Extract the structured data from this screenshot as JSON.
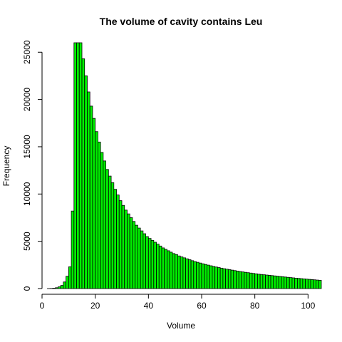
{
  "chart_data": {
    "type": "bar",
    "title": "The volume of cavity contains Leu",
    "xlabel": "Volume",
    "ylabel": "Frequency",
    "bar_color": "#00ee00",
    "edge_color": "#000000",
    "bin_width": 1,
    "bin_start": 2,
    "xlim": [
      0,
      105
    ],
    "ylim": [
      0,
      26000
    ],
    "x_ticks": [
      0,
      20,
      40,
      60,
      80,
      100
    ],
    "y_ticks": [
      0,
      5000,
      10000,
      15000,
      20000,
      25000
    ],
    "values": [
      5,
      15,
      40,
      90,
      180,
      330,
      700,
      1300,
      2300,
      8200,
      26000,
      26000,
      26000,
      24300,
      22500,
      20800,
      19300,
      18000,
      16600,
      15500,
      14400,
      13500,
      12600,
      11900,
      11200,
      10500,
      9900,
      9300,
      8800,
      8300,
      7900,
      7500,
      7100,
      6700,
      6400,
      6100,
      5800,
      5500,
      5300,
      5100,
      4900,
      4700,
      4500,
      4300,
      4150,
      4000,
      3850,
      3700,
      3600,
      3450,
      3350,
      3250,
      3150,
      3050,
      2950,
      2850,
      2780,
      2700,
      2620,
      2550,
      2480,
      2410,
      2340,
      2280,
      2220,
      2160,
      2100,
      2050,
      2000,
      1950,
      1900,
      1850,
      1800,
      1760,
      1720,
      1680,
      1640,
      1600,
      1560,
      1520,
      1490,
      1460,
      1430,
      1400,
      1370,
      1340,
      1310,
      1280,
      1250,
      1220,
      1190,
      1160,
      1130,
      1100,
      1075,
      1050,
      1025,
      1000,
      975,
      950,
      925,
      900,
      875
    ]
  }
}
